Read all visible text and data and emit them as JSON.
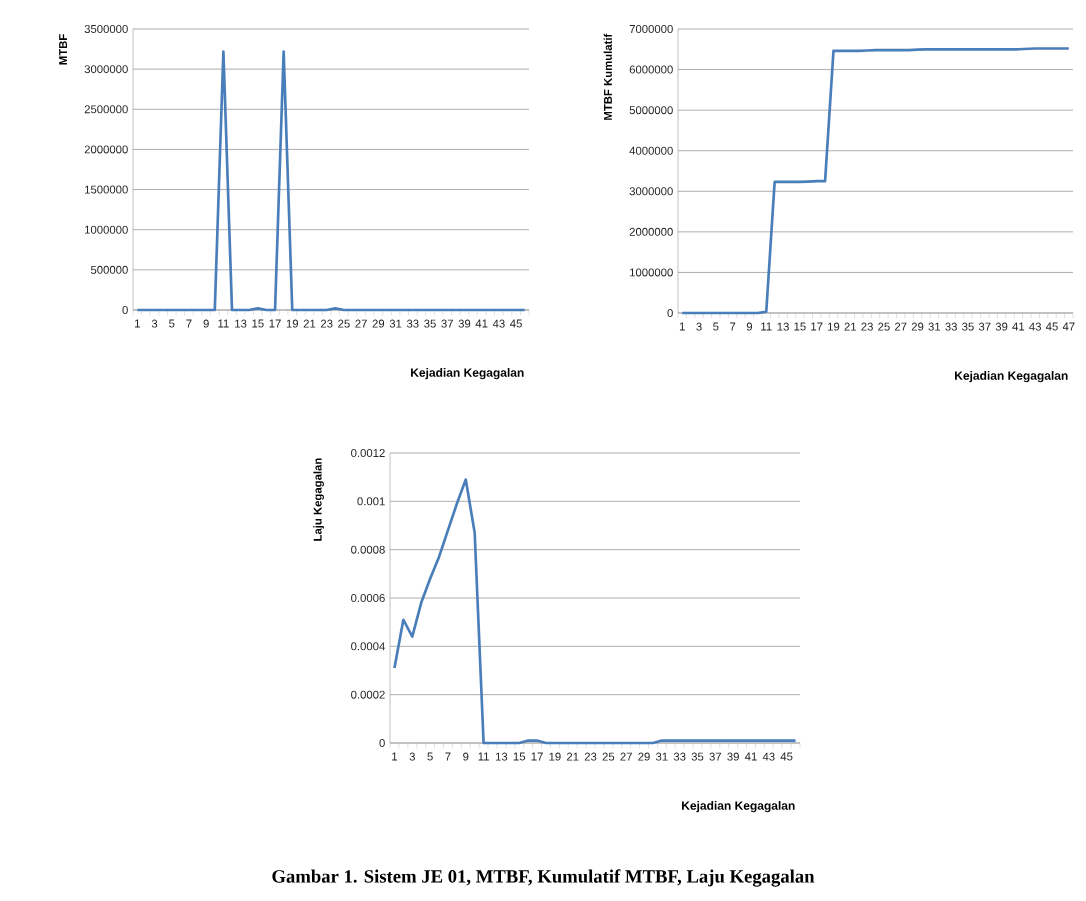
{
  "chart_data": [
    {
      "type": "line",
      "ylabel": "MTBF",
      "xlabel": "Kejadian Kegagalan",
      "categories": [
        "1",
        null,
        "3",
        null,
        "5",
        null,
        "7",
        null,
        "9",
        null,
        "11",
        null,
        "13",
        null,
        "15",
        null,
        "17",
        null,
        "19",
        null,
        "21",
        null,
        "23",
        null,
        "25",
        null,
        "27",
        null,
        "29",
        null,
        "31",
        null,
        "33",
        null,
        "35",
        null,
        "37",
        null,
        "39",
        null,
        "41",
        null,
        "43",
        null,
        "45",
        null
      ],
      "series": [
        {
          "color": "#4a7ebb",
          "values": [
            0,
            0,
            0,
            0,
            0,
            0,
            0,
            0,
            0,
            0,
            3220000,
            0,
            0,
            0,
            20000,
            0,
            0,
            3220000,
            0,
            0,
            0,
            0,
            0,
            20000,
            0,
            0,
            0,
            0,
            0,
            0,
            0,
            0,
            0,
            0,
            0,
            0,
            0,
            0,
            0,
            0,
            0,
            0,
            0,
            0,
            0,
            0
          ]
        }
      ],
      "ylim": [
        0,
        3500000
      ],
      "yticks": [
        0,
        500000,
        1000000,
        1500000,
        2000000,
        2500000,
        3000000,
        3500000
      ],
      "grid": "y",
      "line_style": "solid"
    },
    {
      "type": "line",
      "ylabel": "MTBF Kumulatif",
      "xlabel": "Kejadian Kegagalan",
      "categories": [
        "1",
        null,
        "3",
        null,
        "5",
        null,
        "7",
        null,
        "9",
        null,
        "11",
        null,
        "13",
        null,
        "15",
        null,
        "17",
        null,
        "19",
        null,
        "21",
        null,
        "23",
        null,
        "25",
        null,
        "27",
        null,
        "29",
        null,
        "31",
        null,
        "33",
        null,
        "35",
        null,
        "37",
        null,
        "39",
        null,
        "41",
        null,
        "43",
        null,
        "45",
        null,
        "47"
      ],
      "series": [
        {
          "color": "#4a7ebb",
          "values": [
            0,
            0,
            0,
            0,
            0,
            0,
            0,
            0,
            0,
            0,
            30000,
            3230000,
            3230000,
            3230000,
            3230000,
            3240000,
            3250000,
            3250000,
            6460000,
            6460000,
            6460000,
            6460000,
            6470000,
            6480000,
            6480000,
            6480000,
            6480000,
            6480000,
            6490000,
            6500000,
            6500000,
            6500000,
            6500000,
            6500000,
            6500000,
            6500000,
            6500000,
            6500000,
            6500000,
            6500000,
            6500000,
            6510000,
            6520000,
            6520000,
            6520000,
            6520000,
            6520000
          ]
        }
      ],
      "ylim": [
        0,
        7000000
      ],
      "yticks": [
        0,
        1000000,
        2000000,
        3000000,
        4000000,
        5000000,
        6000000,
        7000000
      ],
      "grid": "y",
      "line_style": "solid"
    },
    {
      "type": "line",
      "ylabel": "Laju Kegagalan",
      "xlabel": "Kejadian Kegagalan",
      "categories": [
        "1",
        null,
        "3",
        null,
        "5",
        null,
        "7",
        null,
        "9",
        null,
        "11",
        null,
        "13",
        null,
        "15",
        null,
        "17",
        null,
        "19",
        null,
        "21",
        null,
        "23",
        null,
        "25",
        null,
        "27",
        null,
        "29",
        null,
        "31",
        null,
        "33",
        null,
        "35",
        null,
        "37",
        null,
        "39",
        null,
        "41",
        null,
        "43",
        null,
        "45",
        null
      ],
      "series": [
        {
          "color": "#4a7ebb",
          "values": [
            0.00031,
            0.00051,
            0.00044,
            0.00058,
            0.00068,
            0.00077,
            0.00088,
            0.00099,
            0.00109,
            0.00087,
            0,
            0,
            0,
            0,
            0,
            1e-05,
            1e-05,
            0,
            0,
            0,
            0,
            0,
            0,
            0,
            0,
            0,
            0,
            0,
            0,
            0,
            1e-05,
            1e-05,
            1e-05,
            1e-05,
            1e-05,
            1e-05,
            1e-05,
            1e-05,
            1e-05,
            1e-05,
            1e-05,
            1e-05,
            1e-05,
            1e-05,
            1e-05,
            1e-05
          ]
        }
      ],
      "ylim": [
        0,
        0.0012
      ],
      "yticks": [
        0,
        0.0002,
        0.0004,
        0.0006,
        0.0008,
        0.001,
        0.0012
      ],
      "grid": "y",
      "line_style": "solid",
      "annotations": [
        "Gambar 1. Sistem JE 01, MTBF, Kumulatif MTBF, Laju Kegagalan"
      ]
    }
  ]
}
